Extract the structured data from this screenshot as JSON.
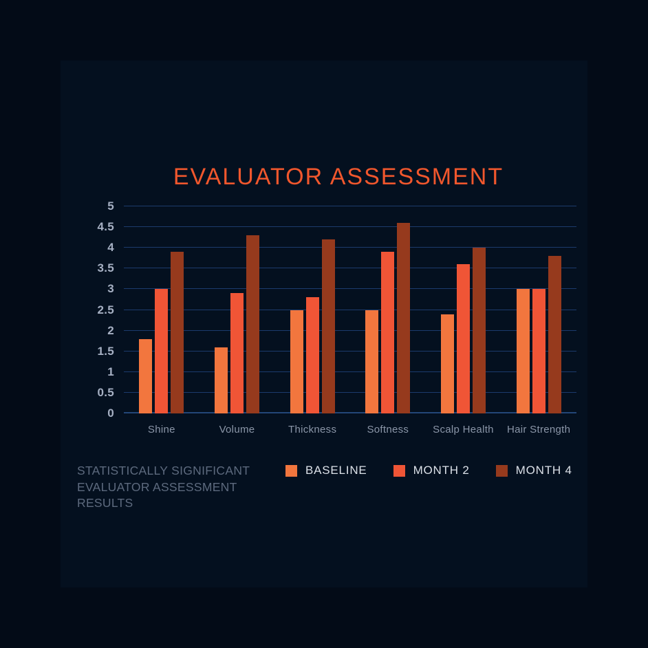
{
  "title": "EVALUATOR ASSESSMENT",
  "footnote": {
    "lines": [
      "STATISTICALLY SIGNIFICANT",
      "EVALUATOR ASSESSMENT",
      "RESULTS"
    ]
  },
  "colors": {
    "background": "#030b17",
    "panel": "#04101f",
    "title": "#f1572d",
    "gridline": "#1c3b6d",
    "axis_line": "#234678",
    "y_tick_text": "#a6b0c3",
    "category_text": "#8b96a8",
    "legend_text": "#dce1e8",
    "footnote_text": "#5d6a7e"
  },
  "chart_data": {
    "type": "bar",
    "title": "EVALUATOR ASSESSMENT",
    "categories": [
      "Shine",
      "Volume",
      "Thickness",
      "Softness",
      "Scalp Health",
      "Hair Strength"
    ],
    "series": [
      {
        "name": "BASELINE",
        "color": "#f2763e",
        "values": [
          1.8,
          1.6,
          2.5,
          2.5,
          2.4,
          3.0
        ]
      },
      {
        "name": "MONTH 2",
        "color": "#f05536",
        "values": [
          3.0,
          2.9,
          2.8,
          3.9,
          3.6,
          3.0
        ]
      },
      {
        "name": "MONTH 4",
        "color": "#963a1d",
        "values": [
          3.9,
          4.3,
          4.2,
          4.6,
          4.0,
          3.8
        ]
      }
    ],
    "xlabel": "",
    "ylabel": "",
    "ylim": [
      0,
      5
    ],
    "ytick_step": 0.5,
    "grid": true,
    "legend_position": "bottom"
  }
}
